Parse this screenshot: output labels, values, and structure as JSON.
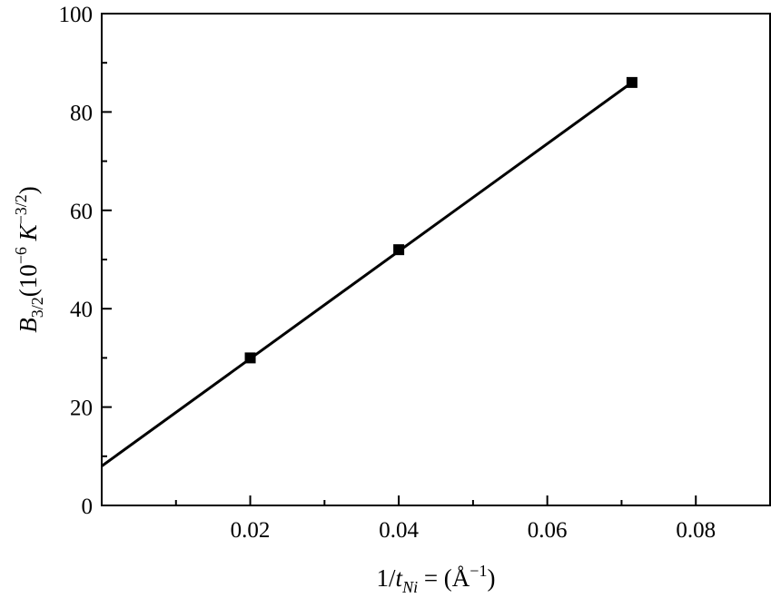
{
  "chart_data": {
    "type": "scatter",
    "xlabel": {
      "main": "1/",
      "var": "t",
      "sub": "Ni",
      "rest": " = (Å",
      "sup": "−1",
      "end": ")"
    },
    "ylabel": {
      "var": "B",
      "sub": "3/2",
      "open": "(10",
      "exp": "−6",
      "unit": " K",
      "unit_exp": "−3/2",
      "close": ")"
    },
    "xlim": [
      0,
      0.09
    ],
    "ylim": [
      0,
      100
    ],
    "x_ticks": [
      0.02,
      0.04,
      0.06,
      0.08
    ],
    "x_tick_labels": [
      "0.02",
      "0.04",
      "0.06",
      "0.08"
    ],
    "x_minor_ticks": [
      0.01,
      0.03,
      0.05,
      0.07,
      0.09
    ],
    "y_ticks": [
      0,
      20,
      40,
      60,
      80,
      100
    ],
    "y_tick_labels": [
      "0",
      "20",
      "40",
      "60",
      "80",
      "100"
    ],
    "y_minor_ticks": [
      10,
      30,
      50,
      70,
      90
    ],
    "series": [
      {
        "marker": "square",
        "color": "#000000",
        "x": [
          0.02,
          0.04,
          0.0714
        ],
        "y": [
          30,
          52,
          86
        ]
      }
    ],
    "fit_line": {
      "color": "#000000",
      "x": [
        0,
        0.0714
      ],
      "y": [
        8,
        86
      ]
    },
    "grid": false,
    "legend": "none"
  }
}
